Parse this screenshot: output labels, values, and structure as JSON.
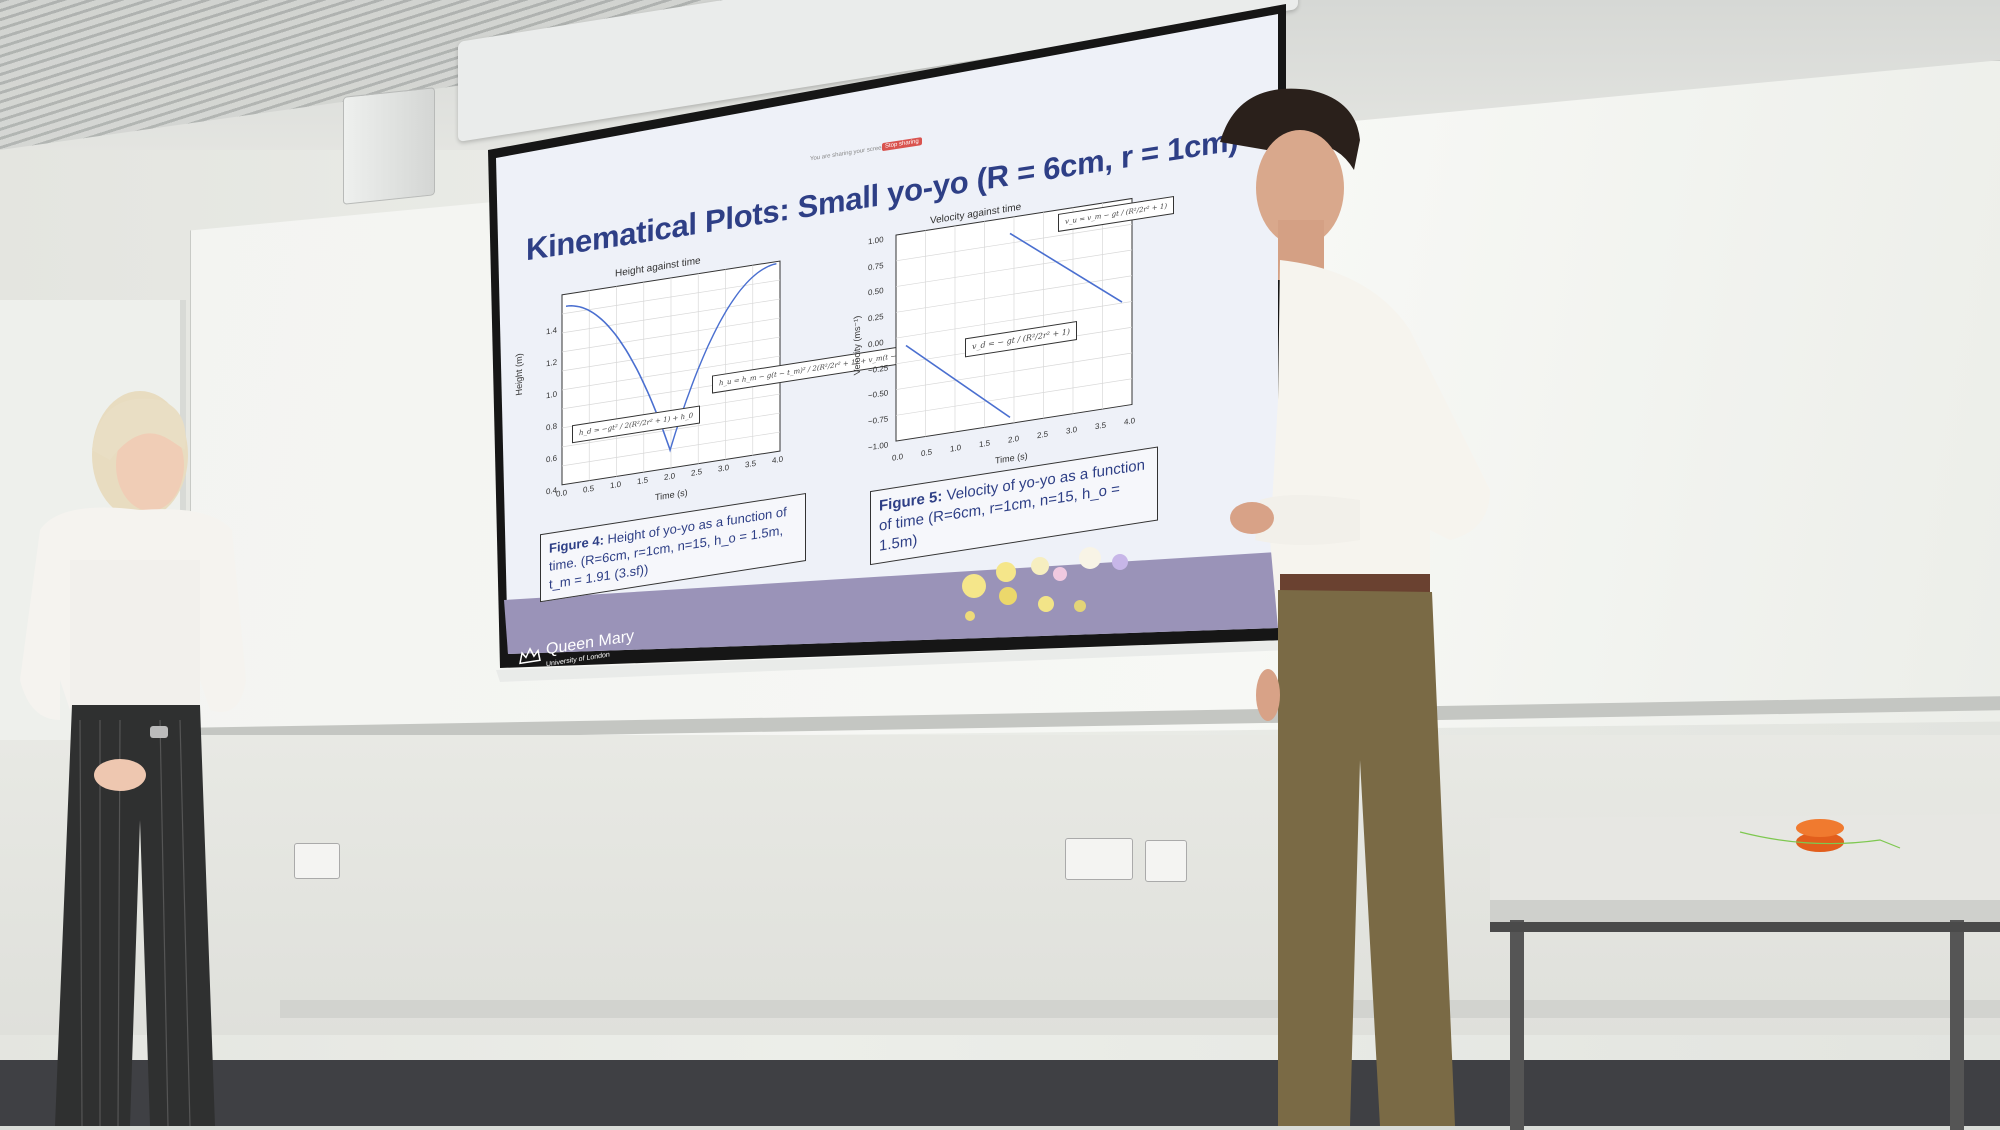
{
  "slide": {
    "title": "Kinematical Plots: Small yo-yo (R = 6cm, r = 1cm)",
    "top_bar_text": "You are sharing your screen",
    "stop_sharing_label": "Stop sharing",
    "logo_text": "Queen Mary",
    "logo_subtext": "University of London"
  },
  "plot_height": {
    "title": "Height against time",
    "xlabel": "Time (s)",
    "ylabel": "Height (m)",
    "x_ticks": [
      "0.0",
      "0.5",
      "1.0",
      "1.5",
      "2.0",
      "2.5",
      "3.0",
      "3.5",
      "4.0"
    ],
    "y_ticks": [
      "1.4",
      "1.2",
      "1.0",
      "0.8",
      "0.6",
      "0.4"
    ],
    "eq_left": "h_d = −gt² / 2(R²/2r² + 1) + h_0",
    "eq_right": "h_u = h_m − g(t − t_m)² / 2(R²/2r² + 1) + v_m(t − t_m)",
    "caption_bold": "Figure 4:",
    "caption_rest": "Height of yo-yo as a function of time. (R=6cm, r=1cm, n=15, h_o = 1.5m, t_m = 1.91 (3.sf))"
  },
  "plot_velocity": {
    "title": "Velocity against time",
    "xlabel": "Time (s)",
    "ylabel": "Velocity (ms⁻¹)",
    "x_ticks": [
      "0.0",
      "0.5",
      "1.0",
      "1.5",
      "2.0",
      "2.5",
      "3.0",
      "3.5",
      "4.0"
    ],
    "y_ticks": [
      "1.00",
      "0.75",
      "0.50",
      "0.25",
      "0.00",
      "−0.25",
      "−0.50",
      "−0.75",
      "−1.00"
    ],
    "eq_top": "v_u = v_m − gt / (R²/2r² + 1)",
    "eq_mid": "v_d = − gt / (R²/2r² + 1)",
    "caption_bold": "Figure 5:",
    "caption_rest": "Velocity of yo-yo as a function of time (R=6cm, r=1cm, n=15, h_o = 1.5m)"
  },
  "colors": {
    "slide_bg": "#eef1f8",
    "title_blue": "#2e3f86",
    "curve_blue": "#4a6fd0",
    "footer_purple": "#9a93b8"
  }
}
